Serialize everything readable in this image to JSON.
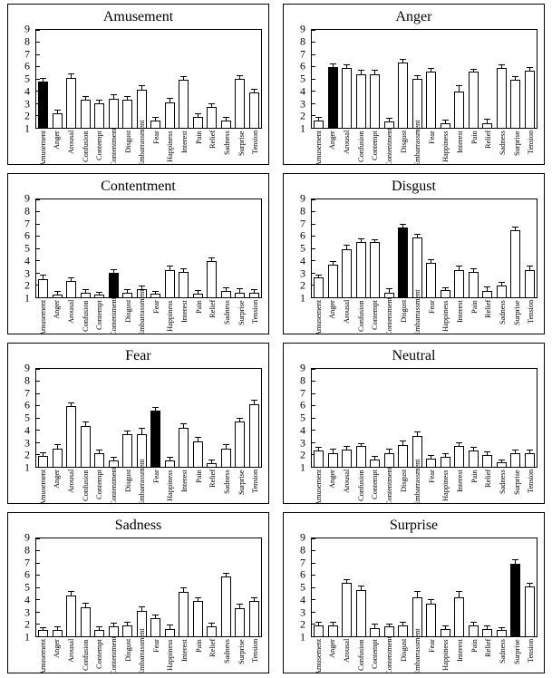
{
  "figure": {
    "panel_titles": [
      "Amusement",
      "Anger",
      "Contentment",
      "Disgust",
      "Fear",
      "Neutral",
      "Sadness",
      "Surprise"
    ],
    "axis_color": "#000000",
    "bar_fill": "#ffffff",
    "highlight_fill": "#000000"
  },
  "chart_data": [
    {
      "type": "bar",
      "title": "Amusement",
      "categories": [
        "Amusement",
        "Anger",
        "Arousal",
        "Confusion",
        "Contempt",
        "Contentment",
        "Disgust",
        "Embarrassment",
        "Fear",
        "Happiness",
        "Interest",
        "Pain",
        "Relief",
        "Sadness",
        "Surprise",
        "Tension"
      ],
      "values": [
        4.8,
        2.2,
        5.1,
        3.3,
        3.0,
        3.4,
        3.3,
        4.1,
        1.6,
        3.1,
        4.9,
        1.9,
        2.7,
        1.6,
        5.0,
        3.9
      ],
      "errors": [
        0.3,
        0.3,
        0.4,
        0.3,
        0.3,
        0.4,
        0.3,
        0.4,
        0.3,
        0.4,
        0.3,
        0.3,
        0.3,
        0.3,
        0.3,
        0.3
      ],
      "highlighted_category": "Amusement",
      "ylim": [
        1,
        9
      ],
      "yticks": [
        1,
        2,
        3,
        4,
        5,
        6,
        7,
        8,
        9
      ],
      "grid": false,
      "legend": "none"
    },
    {
      "type": "bar",
      "title": "Anger",
      "categories": [
        "Amusement",
        "Anger",
        "Arousal",
        "Confusion",
        "Contempt",
        "Contentment",
        "Disgust",
        "Embarrassment",
        "Fear",
        "Happiness",
        "Interest",
        "Pain",
        "Relief",
        "Sadness",
        "Surprise",
        "Tension"
      ],
      "values": [
        1.6,
        6.0,
        5.9,
        5.4,
        5.4,
        1.5,
        6.3,
        5.0,
        5.6,
        1.4,
        4.0,
        5.6,
        1.4,
        5.9,
        4.9,
        5.7
      ],
      "errors": [
        0.3,
        0.3,
        0.3,
        0.4,
        0.4,
        0.3,
        0.3,
        0.3,
        0.3,
        0.3,
        0.5,
        0.2,
        0.4,
        0.3,
        0.3,
        0.3
      ],
      "highlighted_category": "Anger",
      "ylim": [
        1,
        9
      ],
      "yticks": [
        1,
        2,
        3,
        4,
        5,
        6,
        7,
        8,
        9
      ],
      "grid": false,
      "legend": "none"
    },
    {
      "type": "bar",
      "title": "Contentment",
      "categories": [
        "Amusement",
        "Anger",
        "Arousal",
        "Confusion",
        "Contempt",
        "Contentment",
        "Disgust",
        "Embarrassment",
        "Fear",
        "Happiness",
        "Interest",
        "Pain",
        "Relief",
        "Sadness",
        "Surprise",
        "Tension"
      ],
      "values": [
        2.5,
        1.2,
        2.3,
        1.4,
        1.2,
        3.0,
        1.4,
        1.7,
        1.3,
        3.2,
        3.1,
        1.3,
        4.0,
        1.5,
        1.4,
        1.4
      ],
      "errors": [
        0.4,
        0.3,
        0.3,
        0.3,
        0.2,
        0.3,
        0.3,
        0.3,
        0.2,
        0.4,
        0.3,
        0.3,
        0.3,
        0.3,
        0.4,
        0.3
      ],
      "highlighted_category": "Contentment",
      "ylim": [
        1,
        9
      ],
      "yticks": [
        1,
        2,
        3,
        4,
        5,
        6,
        7,
        8,
        9
      ],
      "grid": false,
      "legend": "none"
    },
    {
      "type": "bar",
      "title": "Disgust",
      "categories": [
        "Amusement",
        "Anger",
        "Arousal",
        "Confusion",
        "Contempt",
        "Contentment",
        "Disgust",
        "Embarrassment",
        "Fear",
        "Happiness",
        "Interest",
        "Pain",
        "Relief",
        "Sadness",
        "Surprise",
        "Tension"
      ],
      "values": [
        2.6,
        3.7,
        4.9,
        5.5,
        5.5,
        1.4,
        6.7,
        5.9,
        3.8,
        1.6,
        3.2,
        3.1,
        1.5,
        2.0,
        6.5,
        3.2
      ],
      "errors": [
        0.2,
        0.3,
        0.4,
        0.3,
        0.2,
        0.4,
        0.3,
        0.3,
        0.3,
        0.2,
        0.4,
        0.3,
        0.4,
        0.3,
        0.3,
        0.4
      ],
      "highlighted_category": "Disgust",
      "ylim": [
        1,
        9
      ],
      "yticks": [
        1,
        2,
        3,
        4,
        5,
        6,
        7,
        8,
        9
      ],
      "grid": false,
      "legend": "none"
    },
    {
      "type": "bar",
      "title": "Fear",
      "categories": [
        "Amusement",
        "Anger",
        "Arousal",
        "Confusion",
        "Contempt",
        "Contentment",
        "Disgust",
        "Embarrassment",
        "Fear",
        "Happiness",
        "Interest",
        "Pain",
        "Relief",
        "Sadness",
        "Surprise",
        "Tension"
      ],
      "values": [
        1.9,
        2.5,
        6.0,
        4.3,
        2.1,
        1.5,
        3.7,
        3.7,
        5.6,
        1.5,
        4.2,
        3.1,
        1.3,
        2.5,
        4.7,
        6.1
      ],
      "errors": [
        0.3,
        0.4,
        0.3,
        0.4,
        0.3,
        0.3,
        0.3,
        0.5,
        0.3,
        0.3,
        0.4,
        0.4,
        0.3,
        0.4,
        0.3,
        0.4
      ],
      "highlighted_category": "Fear",
      "ylim": [
        1,
        9
      ],
      "yticks": [
        1,
        2,
        3,
        4,
        5,
        6,
        7,
        8,
        9
      ],
      "grid": false,
      "legend": "none"
    },
    {
      "type": "bar",
      "title": "Neutral",
      "categories": [
        "Amusement",
        "Anger",
        "Arousal",
        "Confusion",
        "Contempt",
        "Contentment",
        "Disgust",
        "Embarrassment",
        "Fear",
        "Happiness",
        "Interest",
        "Pain",
        "Relief",
        "Sadness",
        "Surprise",
        "Tension"
      ],
      "values": [
        2.3,
        2.1,
        2.4,
        2.7,
        1.6,
        2.1,
        2.8,
        3.5,
        1.7,
        1.8,
        2.7,
        2.3,
        2.0,
        1.4,
        2.1,
        2.1
      ],
      "errors": [
        0.3,
        0.4,
        0.3,
        0.2,
        0.3,
        0.4,
        0.4,
        0.4,
        0.3,
        0.3,
        0.3,
        0.3,
        0.3,
        0.2,
        0.3,
        0.3
      ],
      "highlighted_category": null,
      "ylim": [
        1,
        9
      ],
      "yticks": [
        1,
        2,
        3,
        4,
        5,
        6,
        7,
        8,
        9
      ],
      "grid": false,
      "legend": "none"
    },
    {
      "type": "bar",
      "title": "Sadness",
      "categories": [
        "Amusement",
        "Anger",
        "Arousal",
        "Confusion",
        "Contempt",
        "Contentment",
        "Disgust",
        "Embarrassment",
        "Fear",
        "Happiness",
        "Interest",
        "Pain",
        "Relief",
        "Sadness",
        "Surprise",
        "Tension"
      ],
      "values": [
        1.5,
        1.5,
        4.3,
        3.4,
        1.5,
        1.8,
        1.9,
        3.1,
        2.5,
        1.6,
        4.6,
        3.9,
        1.8,
        5.9,
        3.3,
        3.9
      ],
      "errors": [
        0.2,
        0.3,
        0.4,
        0.4,
        0.3,
        0.3,
        0.3,
        0.4,
        0.3,
        0.4,
        0.4,
        0.3,
        0.3,
        0.3,
        0.4,
        0.3
      ],
      "highlighted_category": null,
      "ylim": [
        1,
        9
      ],
      "yticks": [
        1,
        2,
        3,
        4,
        5,
        6,
        7,
        8,
        9
      ],
      "grid": false,
      "legend": "none"
    },
    {
      "type": "bar",
      "title": "Surprise",
      "categories": [
        "Amusement",
        "Anger",
        "Arousal",
        "Confusion",
        "Contempt",
        "Contentment",
        "Disgust",
        "Embarrassment",
        "Fear",
        "Happiness",
        "Interest",
        "Pain",
        "Relief",
        "Sadness",
        "Surprise",
        "Tension"
      ],
      "values": [
        1.9,
        1.9,
        5.4,
        4.8,
        1.7,
        1.8,
        1.9,
        4.2,
        3.7,
        1.6,
        4.2,
        1.9,
        1.6,
        1.5,
        6.9,
        5.1
      ],
      "errors": [
        0.3,
        0.3,
        0.3,
        0.4,
        0.4,
        0.2,
        0.3,
        0.5,
        0.4,
        0.3,
        0.5,
        0.3,
        0.3,
        0.2,
        0.4,
        0.3
      ],
      "highlighted_category": "Surprise",
      "ylim": [
        1,
        9
      ],
      "yticks": [
        1,
        2,
        3,
        4,
        5,
        6,
        7,
        8,
        9
      ],
      "grid": false,
      "legend": "none"
    }
  ]
}
